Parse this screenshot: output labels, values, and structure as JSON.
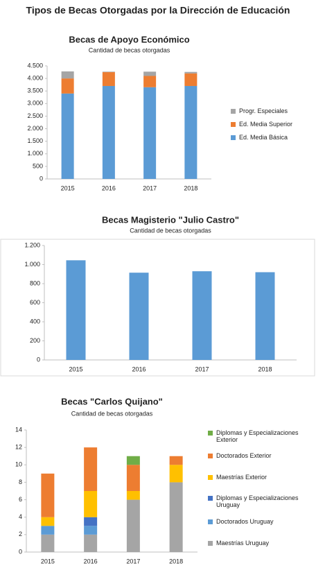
{
  "title": "Tipos de Becas Otorgadas por la Dirección de Educación",
  "chart_data": [
    {
      "type": "bar",
      "stacked": true,
      "title": "Becas de Apoyo Económico",
      "subtitle": "Cantidad de becas otorgadas",
      "categories": [
        "2015",
        "2016",
        "2017",
        "2018"
      ],
      "series": [
        {
          "name": "Ed. Media Básica",
          "color": "#5b9bd5",
          "values": [
            3400,
            3700,
            3650,
            3700
          ]
        },
        {
          "name": "Ed. Media Superior",
          "color": "#ed7d31",
          "values": [
            600,
            550,
            450,
            500
          ]
        },
        {
          "name": "Progr. Especiales",
          "color": "#a5a5a5",
          "values": [
            280,
            20,
            170,
            60
          ]
        }
      ],
      "ylim": [
        0,
        4500
      ],
      "yticks": [
        0,
        500,
        {
          "value": 1000,
          "label": "1.000"
        },
        {
          "value": 1500,
          "label": "1.500"
        },
        {
          "value": 2000,
          "label": "2.000"
        },
        {
          "value": 2500,
          "label": "2.500"
        },
        {
          "value": 3000,
          "label": "3.000"
        },
        {
          "value": 3500,
          "label": "3.500"
        },
        {
          "value": 4000,
          "label": "4.000"
        },
        {
          "value": 4500,
          "label": "4.500"
        }
      ],
      "grid": false,
      "legend": "right"
    },
    {
      "type": "bar",
      "title": "Becas Magisterio \"Julio Castro\"",
      "subtitle": "Cantidad de becas otorgadas",
      "categories": [
        "2015",
        "2016",
        "2017",
        "2018"
      ],
      "values": [
        1045,
        915,
        930,
        920
      ],
      "color": "#5b9bd5",
      "ylim": [
        0,
        1200
      ],
      "yticks": [
        0,
        200,
        400,
        600,
        800,
        {
          "value": 1000,
          "label": "1.000"
        },
        {
          "value": 1200,
          "label": "1.200"
        }
      ],
      "grid": false
    },
    {
      "type": "bar",
      "stacked": true,
      "title": "Becas \"Carlos Quijano\"",
      "subtitle": "Cantidad de becas otorgadas",
      "categories": [
        "2015",
        "2016",
        "2017",
        "2018"
      ],
      "series": [
        {
          "name": "Maestrías Uruguay",
          "color": "#a5a5a5",
          "values": [
            2,
            2,
            6,
            8
          ]
        },
        {
          "name": "Doctorados Uruguay",
          "color": "#5b9bd5",
          "values": [
            1,
            1,
            0,
            0
          ]
        },
        {
          "name": "Diplomas y Especializaciones Uruguay",
          "color": "#4472c4",
          "values": [
            0,
            1,
            0,
            0
          ]
        },
        {
          "name": "Maestrías Exterior",
          "color": "#ffc000",
          "values": [
            1,
            3,
            1,
            2
          ]
        },
        {
          "name": "Doctorados Exterior",
          "color": "#ed7d31",
          "values": [
            5,
            5,
            3,
            1
          ]
        },
        {
          "name": "Diplomas y Especializaciones Exterior",
          "color": "#70ad47",
          "values": [
            0,
            0,
            1,
            0
          ]
        }
      ],
      "ylim": [
        0,
        14
      ],
      "yticks": [
        0,
        2,
        4,
        6,
        8,
        10,
        12,
        14
      ],
      "grid": false,
      "legend": "right"
    }
  ]
}
